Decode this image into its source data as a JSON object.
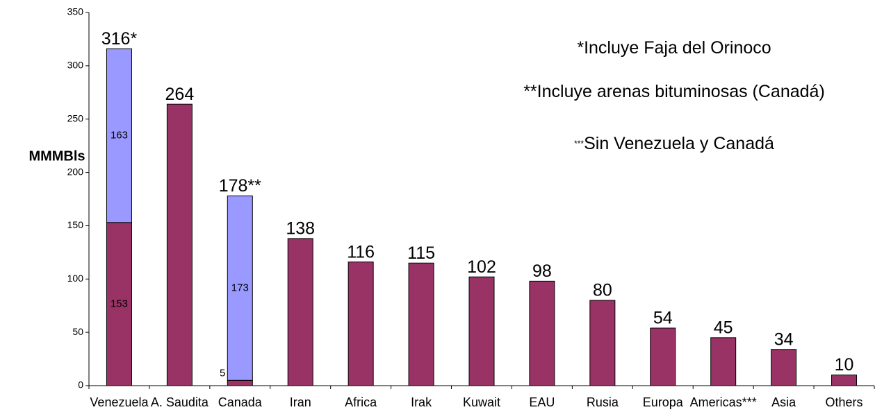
{
  "chart_data": {
    "type": "stacked_bar",
    "y_label": "MMMBls",
    "categories": [
      "Venezuela",
      "A. Saudita",
      "Canada",
      "Iran",
      "Africa",
      "Irak",
      "Kuwait",
      "EAU",
      "Rusia",
      "Europa",
      "Americas***",
      "Asia",
      "Others"
    ],
    "series": [
      {
        "color": "#993366",
        "values": [
          153,
          264,
          5,
          138,
          116,
          115,
          102,
          98,
          80,
          54,
          45,
          34,
          10
        ],
        "value_labels": [
          "153",
          null,
          "5",
          null,
          null,
          null,
          null,
          null,
          null,
          null,
          null,
          null,
          null
        ]
      },
      {
        "color": "#9999ff",
        "values": [
          163,
          null,
          173,
          null,
          null,
          null,
          null,
          null,
          null,
          null,
          null,
          null,
          null
        ],
        "value_labels": [
          "163",
          null,
          "173",
          null,
          null,
          null,
          null,
          null,
          null,
          null,
          null,
          null,
          null
        ]
      }
    ],
    "totals": [
      316,
      264,
      178,
      138,
      116,
      115,
      102,
      98,
      80,
      54,
      45,
      34,
      10
    ],
    "total_labels": [
      "316*",
      "264",
      "178**",
      "138",
      "116",
      "115",
      "102",
      "98",
      "80",
      "54",
      "45",
      "34",
      "10"
    ],
    "annotations": [
      {
        "text": "*Incluye Faja del Orinoco"
      },
      {
        "text": "**Incluye arenas bituminosas (Canadá)"
      },
      {
        "prefix": "***",
        "text": "Sin Venezuela y Canadá"
      }
    ],
    "ylim": [
      0,
      350
    ],
    "yticks": [
      0,
      50,
      100,
      150,
      200,
      250,
      300,
      350
    ],
    "grid": false
  }
}
